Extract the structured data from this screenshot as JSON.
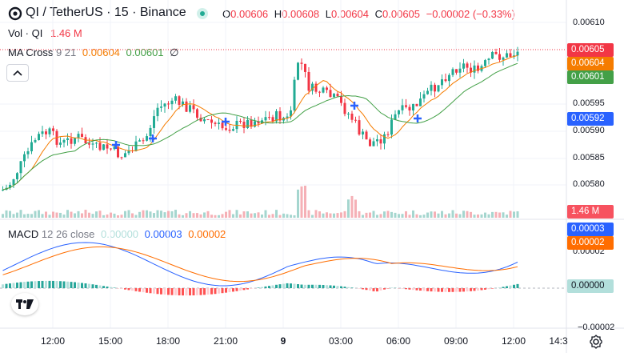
{
  "header": {
    "symbol_title": "QI / TetherUS · 15 · Binance",
    "ohlc": {
      "o_label": "O",
      "o_value": "0.00606",
      "h_label": "H",
      "h_value": "0.00608",
      "l_label": "L",
      "l_value": "0.00604",
      "c_label": "C",
      "c_value": "0.00605",
      "change": "−0.00002 (−0.33%)"
    }
  },
  "indicators": {
    "volume": {
      "name": "Vol · QI",
      "value": "1.46 M"
    },
    "ma_cross": {
      "name": "MA Cross",
      "params": "9 21",
      "fast_value": "0.00604",
      "slow_value": "0.00601",
      "extra_icon": "∅"
    },
    "macd": {
      "name": "MACD",
      "params": "12 26 close",
      "v1": "0.00000",
      "v2": "0.00003",
      "v3": "0.00002"
    }
  },
  "price_axis": {
    "labels": [
      "0.00610",
      "0.00595",
      "0.00590",
      "0.00585",
      "0.00580"
    ],
    "last_price_tag": "0.00605",
    "ma_fast_tag": "0.00604",
    "ma_slow_tag": "0.00601",
    "cross_tag": "0.00592",
    "volume_tag": "1.46 M"
  },
  "macd_axis": {
    "labels": [
      "0.00002",
      "−0.00002"
    ],
    "tag_macd": "0.00003",
    "tag_signal": "0.00002",
    "tag_hist": "0.00000"
  },
  "time_axis": {
    "labels": [
      "12:00",
      "15:00",
      "18:00",
      "21:00",
      "9",
      "03:00",
      "06:00",
      "09:00",
      "12:00",
      "14:3"
    ]
  },
  "colors": {
    "up": "#22ab94",
    "down": "#f23645",
    "ma_fast": "#f57c00",
    "ma_slow": "#43a047",
    "macd_line": "#2962ff",
    "signal_line": "#ff6d00",
    "hist_up": "#26a69a",
    "hist_up_light": "#b2dfdb",
    "hist_down": "#ff5252",
    "hist_down_light": "#ffcdd2",
    "cross_marker": "#2962ff"
  },
  "icons": {
    "logo": "tradingview-logo-icon",
    "status": "market-open-dot-icon",
    "settings": "gear-icon",
    "collapse": "chevron-up-icon"
  }
}
